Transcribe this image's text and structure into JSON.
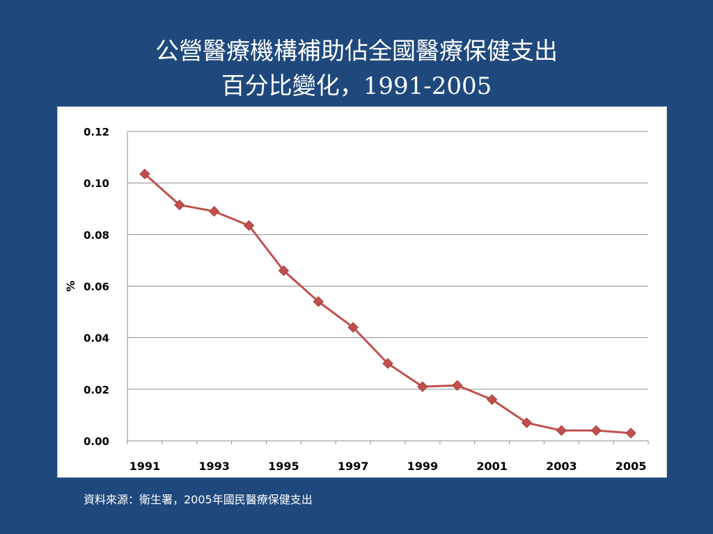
{
  "slide": {
    "title_line1": "公營醫療機構補助佔全國醫療保健支出",
    "title_line2": "百分比變化，1991-2005",
    "source": "資料來源：衛生署，2005年國民醫療保健支出"
  },
  "colors": {
    "background": "#1f497d",
    "series": "#c0504d",
    "grid": "#8c8c8c"
  },
  "chart_data": {
    "type": "line",
    "title": "",
    "xlabel": "",
    "ylabel": "%",
    "x": [
      1991,
      1992,
      1993,
      1994,
      1995,
      1996,
      1997,
      1998,
      1999,
      2000,
      2001,
      2002,
      2003,
      2004,
      2005
    ],
    "xtick_labels": [
      "1991",
      "1993",
      "1995",
      "1997",
      "1999",
      "2001",
      "2003",
      "2005"
    ],
    "ytick_labels": [
      "0.00",
      "0.02",
      "0.04",
      "0.06",
      "0.08",
      "0.10",
      "0.12"
    ],
    "ylim": [
      0,
      0.12
    ],
    "grid": true,
    "legend": "none",
    "marker": "diamond",
    "series": [
      {
        "values": [
          0.1035,
          0.0915,
          0.089,
          0.0835,
          0.066,
          0.054,
          0.044,
          0.03,
          0.021,
          0.0215,
          0.016,
          0.007,
          0.004,
          0.004,
          0.003
        ]
      }
    ]
  }
}
